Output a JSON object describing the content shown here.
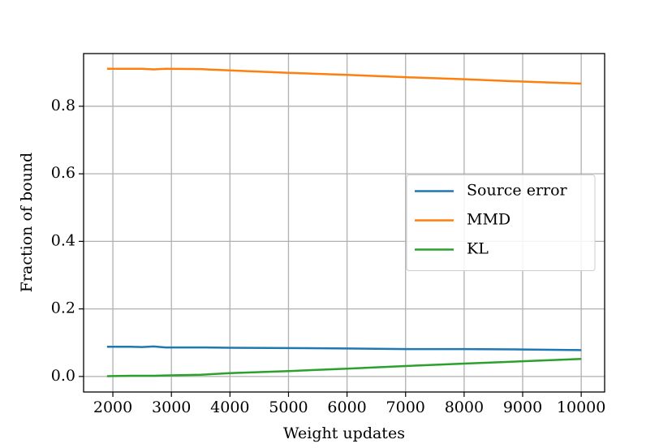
{
  "chart_data": {
    "type": "line",
    "xlabel": "Weight updates",
    "ylabel": "Fraction of bound",
    "x": [
      1900,
      2300,
      2500,
      2700,
      2900,
      3500,
      4000,
      5000,
      6000,
      7000,
      8000,
      9000,
      10000
    ],
    "series": [
      {
        "name": "Source error",
        "color": "#1f77b4",
        "values": [
          0.088,
          0.088,
          0.087,
          0.089,
          0.086,
          0.086,
          0.085,
          0.084,
          0.083,
          0.081,
          0.081,
          0.08,
          0.078
        ]
      },
      {
        "name": "MMD",
        "color": "#ff7f0e",
        "values": [
          0.911,
          0.911,
          0.911,
          0.909,
          0.911,
          0.91,
          0.906,
          0.899,
          0.893,
          0.886,
          0.88,
          0.873,
          0.867
        ]
      },
      {
        "name": "KL",
        "color": "#2ca02c",
        "values": [
          0.001,
          0.002,
          0.002,
          0.002,
          0.003,
          0.005,
          0.01,
          0.016,
          0.023,
          0.031,
          0.038,
          0.045,
          0.052
        ]
      }
    ],
    "xlim": [
      1500,
      10400
    ],
    "ylim": [
      -0.046,
      0.956
    ],
    "xticks": [
      2000,
      3000,
      4000,
      5000,
      6000,
      7000,
      8000,
      9000,
      10000
    ],
    "yticks": [
      {
        "value": 0,
        "label": "0.0"
      },
      0.2,
      0.4,
      0.6,
      0.8
    ],
    "grid": true,
    "legend": "center right"
  }
}
